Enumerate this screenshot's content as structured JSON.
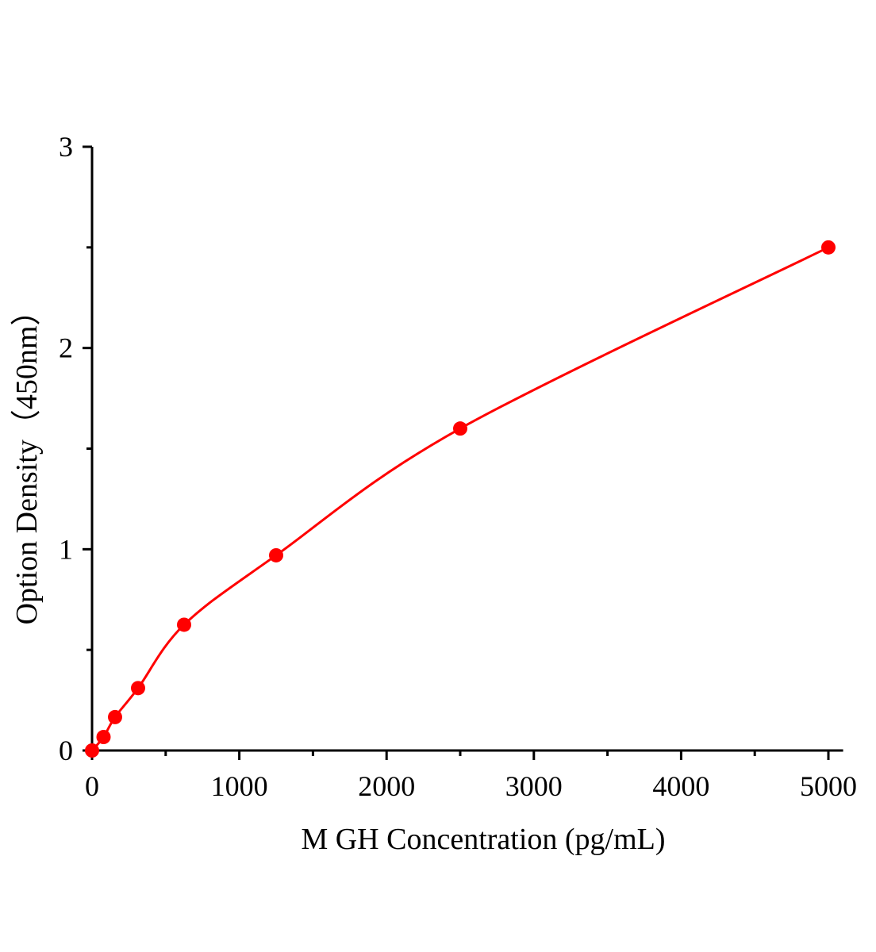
{
  "chart_data": {
    "type": "scatter",
    "title": "",
    "xlabel": "M GH Concentration (pg/mL)",
    "ylabel": "Option Density（450nm）",
    "xlim": [
      0,
      5100
    ],
    "ylim": [
      0,
      3
    ],
    "xticks": [
      0,
      1000,
      2000,
      3000,
      4000,
      5000
    ],
    "yticks": [
      0,
      1,
      2,
      3
    ],
    "xtick_labels": [
      "0",
      "1000",
      "2000",
      "3000",
      "4000",
      "5000"
    ],
    "ytick_labels": [
      "0",
      "1",
      "2",
      "3"
    ],
    "grid": false,
    "legend": "none",
    "color": "#ff0000",
    "series": [
      {
        "x": [
          0,
          78.125,
          156.25,
          312.5,
          625,
          1250,
          2500,
          5000
        ],
        "y": [
          0,
          0.067,
          0.166,
          0.31,
          0.625,
          0.97,
          1.6,
          2.5
        ],
        "fit_curve": true
      }
    ]
  }
}
